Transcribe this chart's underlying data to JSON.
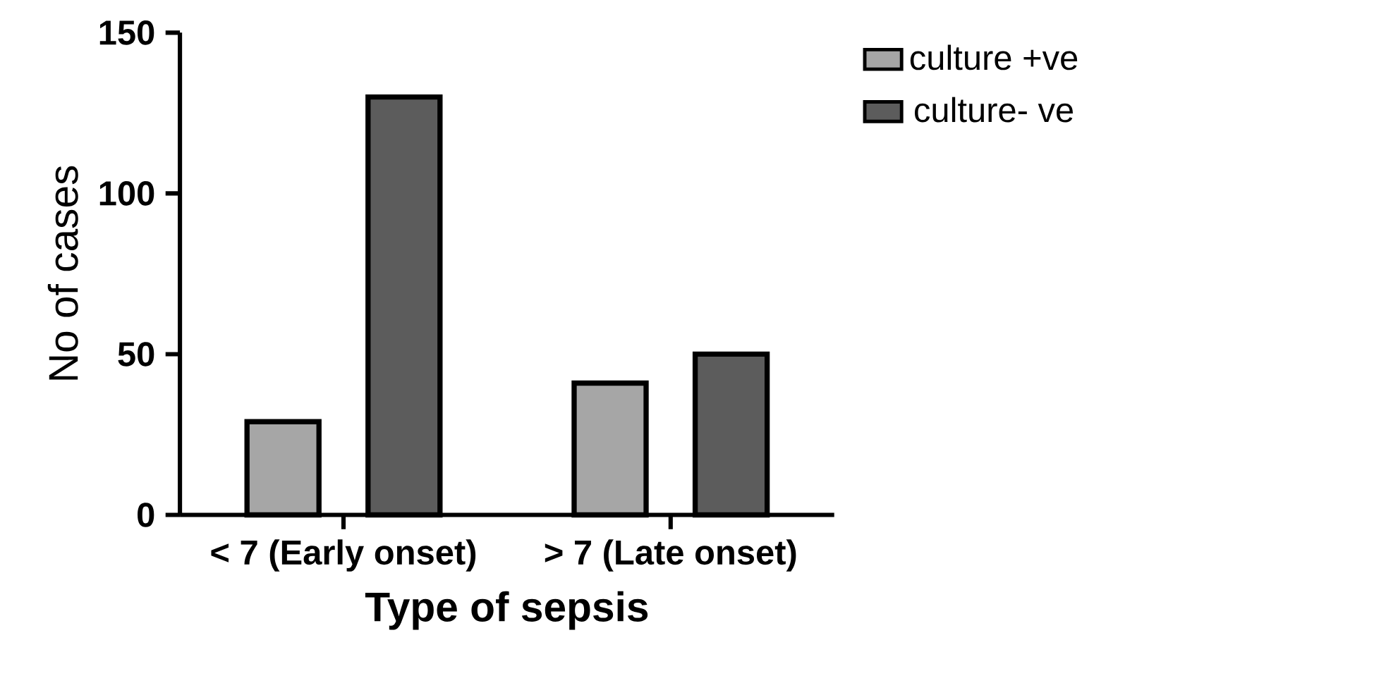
{
  "chart_data": {
    "type": "bar",
    "xlabel": "Type of sepsis",
    "ylabel": "No of cases",
    "categories": [
      "< 7 (Early onset)",
      "> 7 (Late onset)"
    ],
    "series": [
      {
        "name": "culture +ve",
        "color": "#a6a6a6",
        "values": [
          29,
          41
        ]
      },
      {
        "name": "culture- ve",
        "color": "#5c5c5c",
        "values": [
          130,
          50
        ]
      }
    ],
    "ylim": [
      0,
      150
    ],
    "yticks": [
      0,
      50,
      100,
      150
    ],
    "grid": false,
    "legend": "top right"
  }
}
